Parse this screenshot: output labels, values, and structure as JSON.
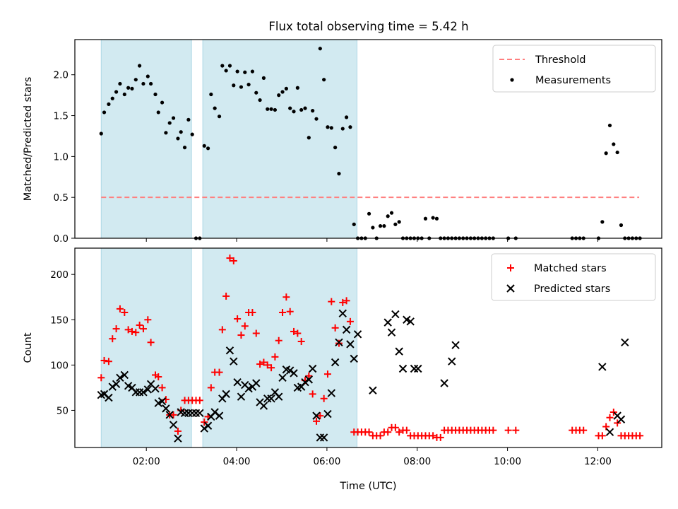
{
  "title": "Flux total observing time = 5.42 h",
  "chart_data": [
    {
      "type": "scatter",
      "panel": "top",
      "ylabel": "Matched/Predicted stars",
      "xlabel": "",
      "xlim": [
        "00:25",
        "13:25"
      ],
      "ylim": [
        0,
        2.43
      ],
      "yticks": [
        0.0,
        0.5,
        1.0,
        1.5,
        2.0
      ],
      "ytick_labels": [
        "0.0",
        "0.5",
        "1.0",
        "1.5",
        "2.0"
      ],
      "shaded_intervals": [
        [
          "01:00",
          "03:00"
        ],
        [
          "03:15",
          "06:40"
        ]
      ],
      "shade_color": "#add8e6",
      "threshold": {
        "name": "Threshold",
        "y": 0.5,
        "x_range": [
          "01:00",
          "12:55"
        ],
        "color": "#ff7f7f",
        "style": "dashed"
      },
      "legend": {
        "position": "upper right",
        "entries": [
          "Threshold",
          "Measurements"
        ]
      },
      "series": [
        {
          "name": "Measurements",
          "color": "#000000",
          "x": [
            "01:00",
            "01:04",
            "01:10",
            "01:15",
            "01:20",
            "01:25",
            "01:31",
            "01:36",
            "01:41",
            "01:46",
            "01:51",
            "01:56",
            "02:02",
            "02:06",
            "02:12",
            "02:16",
            "02:21",
            "02:26",
            "02:31",
            "02:36",
            "02:42",
            "02:46",
            "02:51",
            "02:56",
            "03:01",
            "03:06",
            "03:11",
            "03:17",
            "03:22",
            "03:26",
            "03:31",
            "03:37",
            "03:41",
            "03:46",
            "03:51",
            "03:56",
            "04:01",
            "04:06",
            "04:11",
            "04:16",
            "04:21",
            "04:26",
            "04:31",
            "04:36",
            "04:41",
            "04:46",
            "04:51",
            "04:56",
            "05:01",
            "05:06",
            "05:11",
            "05:16",
            "05:21",
            "05:26",
            "05:31",
            "05:36",
            "05:41",
            "05:46",
            "05:51",
            "05:56",
            "06:01",
            "06:06",
            "06:11",
            "06:16",
            "06:21",
            "06:26",
            "06:31",
            "06:36",
            "06:41",
            "06:46",
            "06:51",
            "06:56",
            "07:01",
            "07:06",
            "07:11",
            "07:16",
            "07:21",
            "07:26",
            "07:31",
            "07:36",
            "07:41",
            "07:46",
            "07:51",
            "07:56",
            "08:01",
            "08:06",
            "08:11",
            "08:16",
            "08:21",
            "08:26",
            "08:31",
            "08:36",
            "08:41",
            "08:46",
            "08:51",
            "08:56",
            "09:01",
            "09:06",
            "09:11",
            "09:16",
            "09:21",
            "09:26",
            "09:31",
            "09:36",
            "09:41",
            "10:01",
            "10:11",
            "11:26",
            "11:31",
            "11:36",
            "11:41",
            "12:01",
            "12:06",
            "12:11",
            "12:16",
            "12:21",
            "12:26",
            "12:31",
            "12:36",
            "12:41",
            "12:46",
            "12:51",
            "12:56"
          ],
          "y": [
            1.28,
            1.54,
            1.64,
            1.71,
            1.79,
            1.89,
            1.76,
            1.84,
            1.83,
            1.94,
            2.11,
            1.89,
            1.98,
            1.89,
            1.76,
            1.54,
            1.66,
            1.29,
            1.41,
            1.47,
            1.22,
            1.3,
            1.11,
            1.45,
            1.27,
            0.0,
            0.0,
            1.13,
            1.1,
            1.76,
            1.59,
            1.49,
            2.11,
            2.05,
            2.11,
            1.87,
            2.04,
            1.85,
            2.03,
            1.88,
            2.04,
            1.78,
            1.69,
            1.96,
            1.58,
            1.58,
            1.57,
            1.75,
            1.79,
            1.83,
            1.59,
            1.55,
            1.84,
            1.57,
            1.59,
            1.23,
            1.56,
            1.46,
            2.32,
            1.94,
            1.36,
            1.35,
            1.11,
            0.79,
            1.34,
            1.48,
            1.36,
            0.17,
            0.0,
            0.0,
            0.0,
            0.3,
            0.13,
            0.0,
            0.15,
            0.15,
            0.27,
            0.31,
            0.17,
            0.2,
            0.0,
            0.0,
            0.0,
            0.0,
            0.0,
            0.0,
            0.24,
            0.0,
            0.25,
            0.24,
            0.0,
            0.0,
            0.0,
            0.0,
            0.0,
            0.0,
            0.0,
            0.0,
            0.0,
            0.0,
            0.0,
            0.0,
            0.0,
            0.0,
            0.0,
            0.0,
            0.0,
            0.0,
            0.0,
            0.0,
            0.0,
            0.0,
            0.2,
            1.04,
            1.38,
            1.15,
            1.05,
            0.16,
            0.0,
            0.0,
            0.0,
            0.0,
            0.0
          ]
        }
      ]
    },
    {
      "type": "scatter",
      "panel": "bottom",
      "ylabel": "Count",
      "xlabel": "Time (UTC)",
      "xlim": [
        "00:25",
        "13:25"
      ],
      "ylim": [
        9,
        229
      ],
      "yticks": [
        50,
        100,
        150,
        200
      ],
      "ytick_labels": [
        "50",
        "100",
        "150",
        "200"
      ],
      "xticks": [
        "02:00",
        "04:00",
        "06:00",
        "08:00",
        "10:00",
        "12:00"
      ],
      "shaded_intervals": [
        [
          "01:00",
          "03:00"
        ],
        [
          "03:15",
          "06:40"
        ]
      ],
      "shade_color": "#add8e6",
      "legend": {
        "position": "upper right",
        "entries": [
          "Matched stars",
          "Predicted stars"
        ]
      },
      "series": [
        {
          "name": "Matched stars",
          "marker": "plus",
          "color": "#ff0000",
          "x": [
            "01:00",
            "01:04",
            "01:10",
            "01:15",
            "01:20",
            "01:25",
            "01:31",
            "01:36",
            "01:41",
            "01:46",
            "01:51",
            "01:56",
            "02:02",
            "02:06",
            "02:12",
            "02:16",
            "02:21",
            "02:26",
            "02:31",
            "02:36",
            "02:42",
            "02:46",
            "02:51",
            "02:56",
            "03:01",
            "03:06",
            "03:11",
            "03:17",
            "03:22",
            "03:26",
            "03:31",
            "03:37",
            "03:41",
            "03:46",
            "03:51",
            "03:56",
            "04:01",
            "04:06",
            "04:11",
            "04:16",
            "04:21",
            "04:26",
            "04:31",
            "04:36",
            "04:41",
            "04:46",
            "04:51",
            "04:56",
            "05:01",
            "05:06",
            "05:11",
            "05:16",
            "05:21",
            "05:26",
            "05:31",
            "05:36",
            "05:41",
            "05:46",
            "05:51",
            "05:56",
            "06:01",
            "06:06",
            "06:11",
            "06:16",
            "06:21",
            "06:26",
            "06:31",
            "06:36",
            "06:41",
            "06:46",
            "06:51",
            "06:56",
            "07:01",
            "07:06",
            "07:11",
            "07:16",
            "07:21",
            "07:26",
            "07:31",
            "07:36",
            "07:41",
            "07:46",
            "07:51",
            "07:56",
            "08:01",
            "08:06",
            "08:11",
            "08:16",
            "08:21",
            "08:26",
            "08:31",
            "08:36",
            "08:41",
            "08:46",
            "08:51",
            "08:56",
            "09:01",
            "09:06",
            "09:11",
            "09:16",
            "09:21",
            "09:26",
            "09:31",
            "09:36",
            "09:41",
            "10:01",
            "10:11",
            "11:26",
            "11:31",
            "11:36",
            "11:41",
            "12:01",
            "12:06",
            "12:11",
            "12:16",
            "12:21",
            "12:26",
            "12:31",
            "12:36",
            "12:41",
            "12:46",
            "12:51",
            "12:56"
          ],
          "y": [
            86,
            105,
            104,
            129,
            140,
            162,
            158,
            139,
            137,
            136,
            144,
            140,
            150,
            125,
            89,
            87,
            75,
            62,
            45,
            45,
            27,
            50,
            61,
            61,
            61,
            61,
            61,
            37,
            43,
            75,
            92,
            92,
            139,
            176,
            218,
            215,
            151,
            133,
            143,
            158,
            158,
            135,
            101,
            103,
            100,
            97,
            109,
            127,
            158,
            175,
            159,
            137,
            135,
            126,
            83,
            88,
            68,
            38,
            44,
            63,
            90,
            170,
            141,
            124,
            169,
            171,
            148,
            26,
            26,
            26,
            26,
            26,
            22,
            22,
            22,
            26,
            26,
            31,
            31,
            26,
            28,
            28,
            22,
            22,
            22,
            22,
            22,
            22,
            22,
            20,
            20,
            28,
            28,
            28,
            28,
            28,
            28,
            28,
            28,
            28,
            28,
            28,
            28,
            28,
            28,
            28,
            28,
            28,
            28,
            28,
            28,
            22,
            22,
            32,
            42,
            48,
            36,
            22,
            22,
            22,
            22,
            22,
            22
          ]
        },
        {
          "name": "Predicted stars",
          "marker": "x",
          "color": "#000000",
          "x": [
            "01:00",
            "01:04",
            "01:10",
            "01:15",
            "01:20",
            "01:25",
            "01:31",
            "01:36",
            "01:41",
            "01:46",
            "01:51",
            "01:56",
            "02:02",
            "02:06",
            "02:12",
            "02:16",
            "02:21",
            "02:26",
            "02:31",
            "02:36",
            "02:42",
            "02:46",
            "02:51",
            "02:56",
            "03:01",
            "03:06",
            "03:11",
            "03:17",
            "03:22",
            "03:26",
            "03:31",
            "03:37",
            "03:41",
            "03:46",
            "03:51",
            "03:56",
            "04:01",
            "04:06",
            "04:11",
            "04:16",
            "04:21",
            "04:26",
            "04:31",
            "04:36",
            "04:41",
            "04:46",
            "04:51",
            "04:56",
            "05:01",
            "05:06",
            "05:11",
            "05:16",
            "05:21",
            "05:26",
            "05:31",
            "05:36",
            "05:41",
            "05:46",
            "05:51",
            "05:56",
            "06:01",
            "06:06",
            "06:11",
            "06:16",
            "06:21",
            "06:26",
            "06:31",
            "06:36",
            "06:41",
            "07:01",
            "07:21",
            "07:26",
            "07:31",
            "07:36",
            "07:41",
            "07:46",
            "07:51",
            "07:56",
            "08:01",
            "08:36",
            "08:46",
            "08:51",
            "12:06",
            "12:16",
            "12:26",
            "12:31",
            "12:36"
          ],
          "y": [
            67,
            68,
            64,
            76,
            79,
            86,
            89,
            77,
            75,
            70,
            70,
            70,
            73,
            79,
            74,
            58,
            60,
            52,
            45,
            34,
            19,
            48,
            47,
            47,
            47,
            47,
            47,
            30,
            33,
            43,
            48,
            44,
            63,
            68,
            116,
            104,
            81,
            65,
            78,
            74,
            76,
            80,
            59,
            55,
            63,
            63,
            70,
            65,
            86,
            95,
            94,
            91,
            75,
            76,
            81,
            84,
            96,
            44,
            20,
            20,
            46,
            69,
            103,
            125,
            157,
            139,
            123,
            107,
            134,
            72,
            147,
            136,
            156,
            115,
            96,
            150,
            148,
            96,
            96,
            80,
            104,
            122,
            98,
            26,
            44,
            40,
            125
          ]
        }
      ]
    }
  ]
}
